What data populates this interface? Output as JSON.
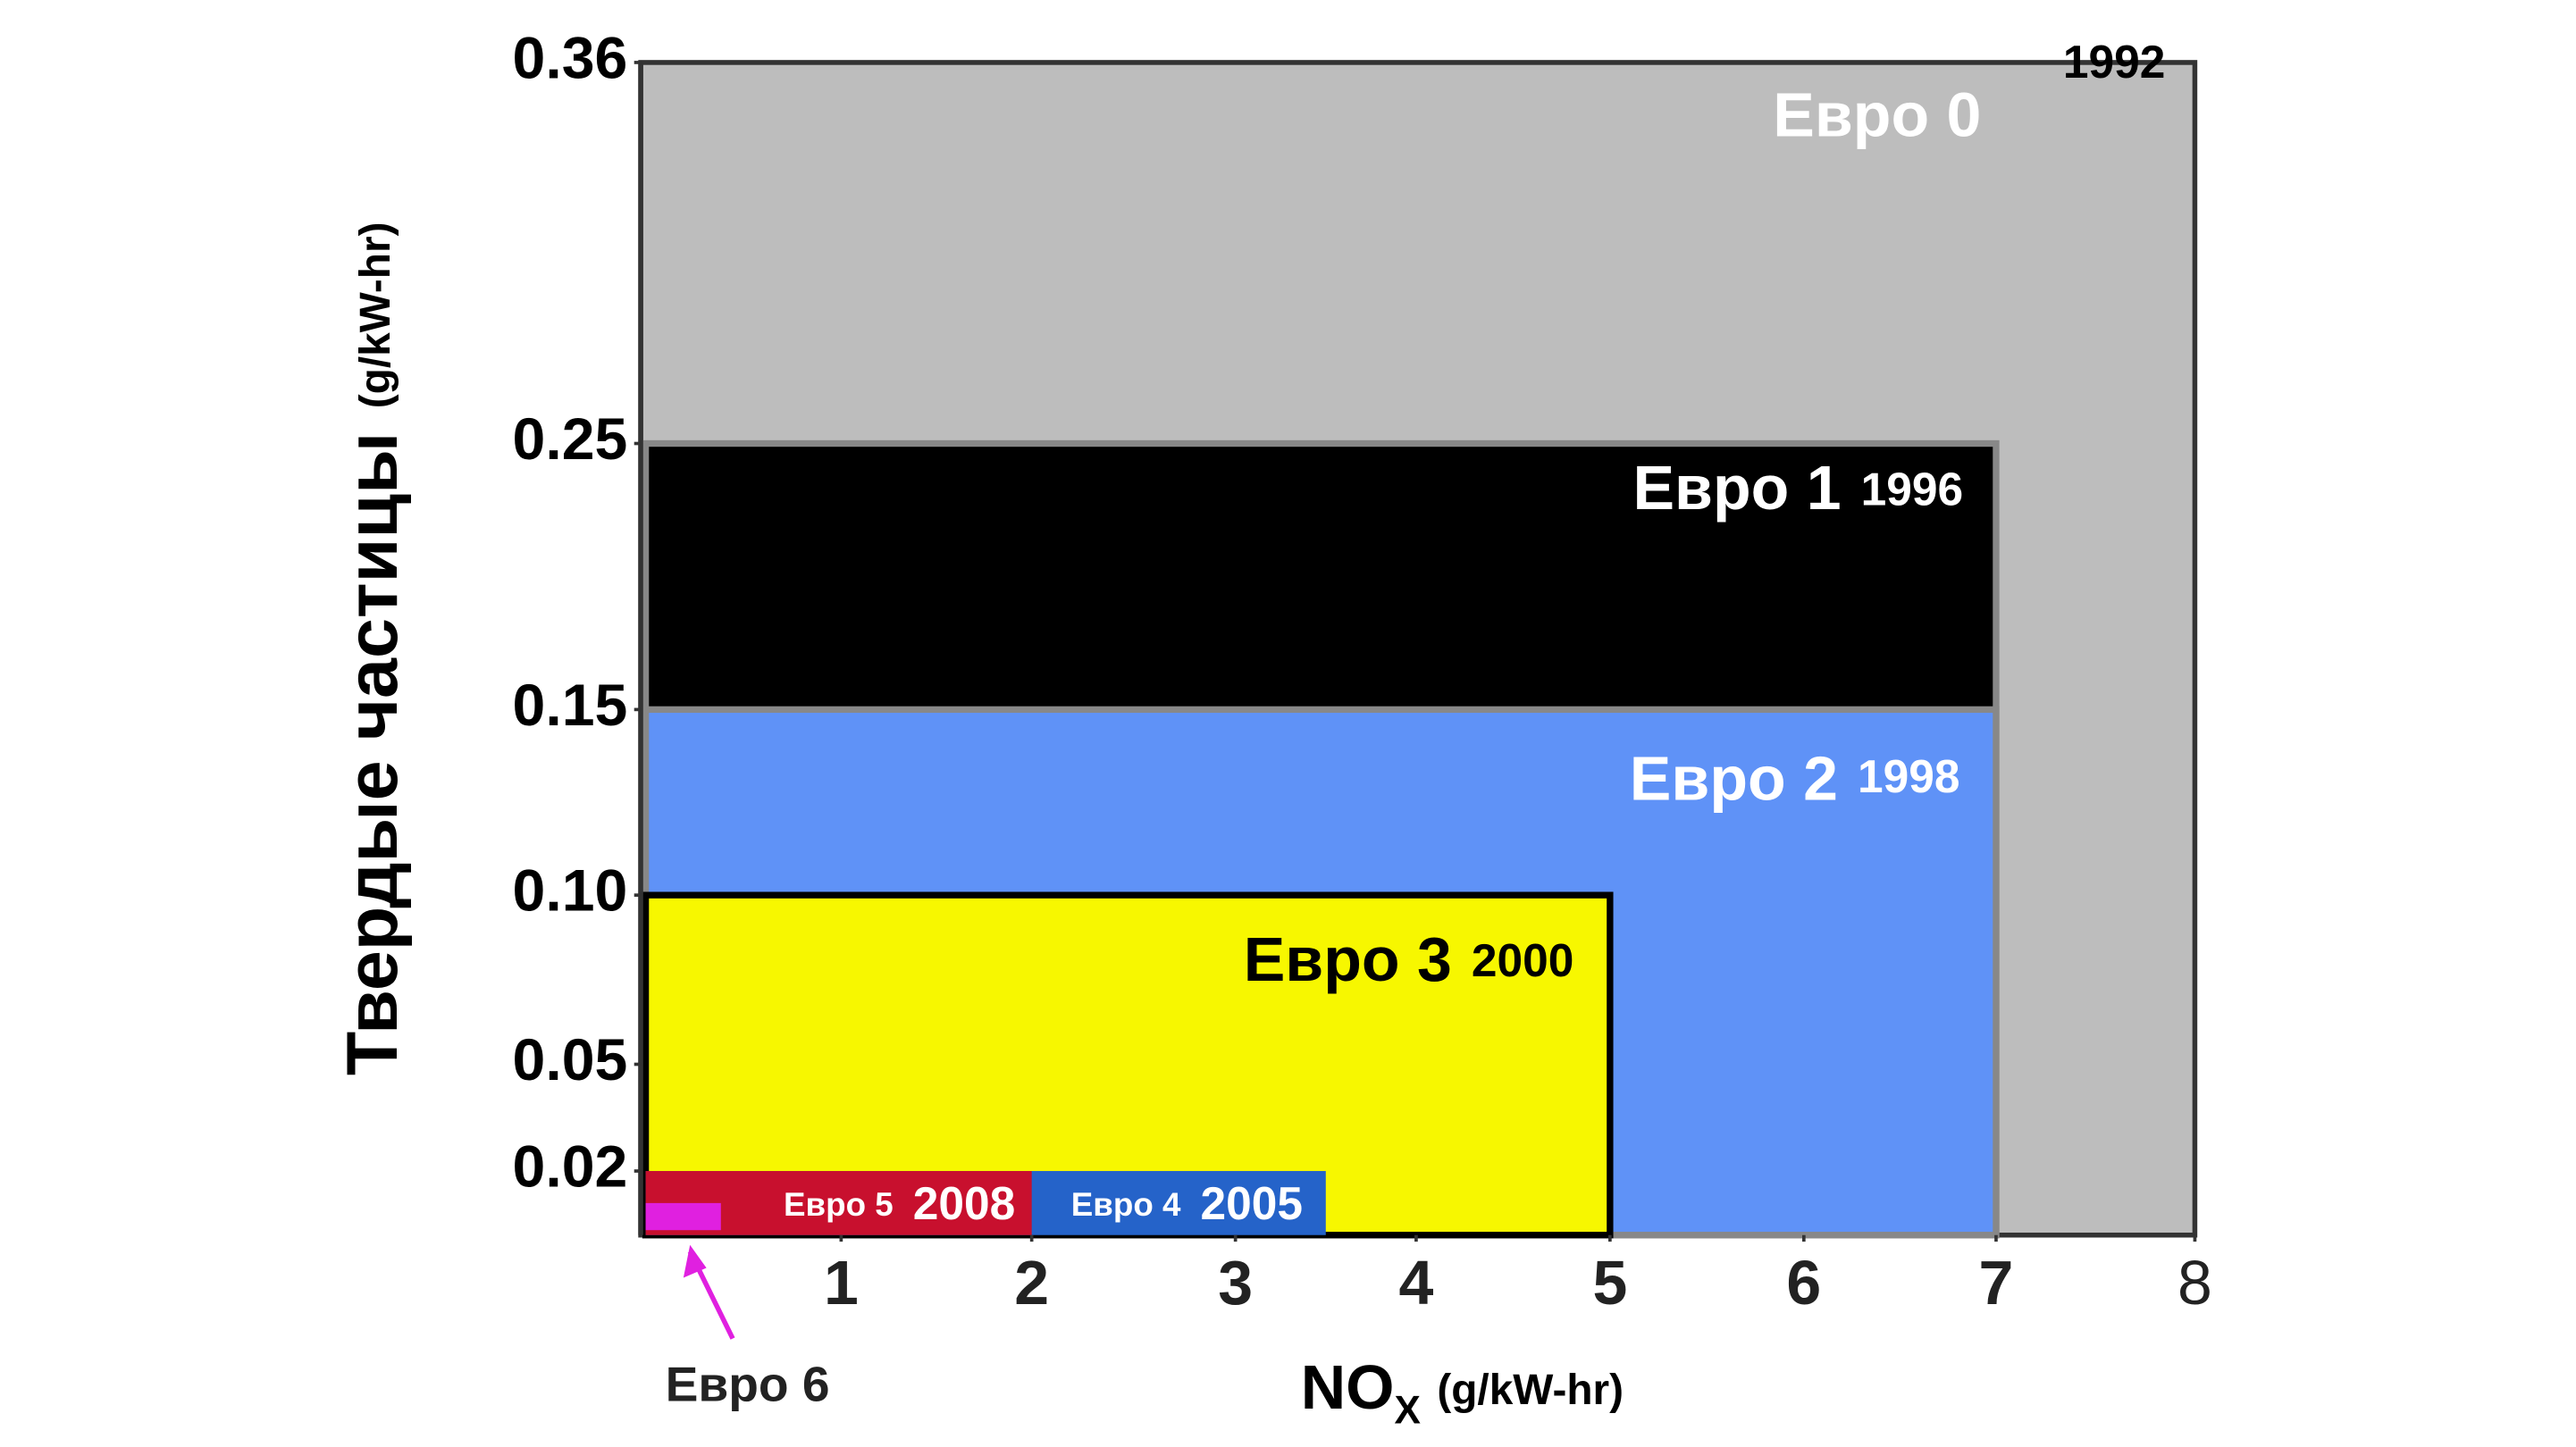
{
  "chart_data": {
    "type": "nested-rect",
    "ylabel": {
      "main": "Твердые частицы",
      "unit": "(g/kW-hr)"
    },
    "xlabel": {
      "main": "NO",
      "sub": "X",
      "unit": "(g/kW-hr)"
    },
    "xlim": [
      0,
      8
    ],
    "xticks": [
      1,
      2,
      3,
      4,
      5,
      6,
      7,
      8
    ],
    "ylim": [
      0,
      0.36
    ],
    "yticks": [
      0.02,
      0.05,
      {
        "value": 0.1,
        "label": "0.10"
      },
      0.15,
      0.25,
      0.36
    ],
    "series": [
      {
        "name": "Евро 0",
        "year": "1992",
        "color": "#bdbdbd",
        "x": 8,
        "y": 0.36
      },
      {
        "name": "Евро 1",
        "year": "1996",
        "color": "#000000",
        "x": 7,
        "y": 0.25
      },
      {
        "name": "Евро 2",
        "year": "1998",
        "color": "#5f92f7",
        "x": 7,
        "y": 0.15
      },
      {
        "name": "Евро 3",
        "year": "2000",
        "color": "#f7f700",
        "x": 5,
        "y": 0.1
      },
      {
        "name": "Евро 4",
        "year": "2005",
        "color": "#2563c9",
        "x": 3.5,
        "y": 0.02
      },
      {
        "name": "Евро 5",
        "year": "2008",
        "color": "#c8102e",
        "x": 2,
        "y": 0.02
      },
      {
        "name": "Евро 6",
        "color": "#e020e0",
        "x": 0.4,
        "y": 0.01
      }
    ]
  }
}
